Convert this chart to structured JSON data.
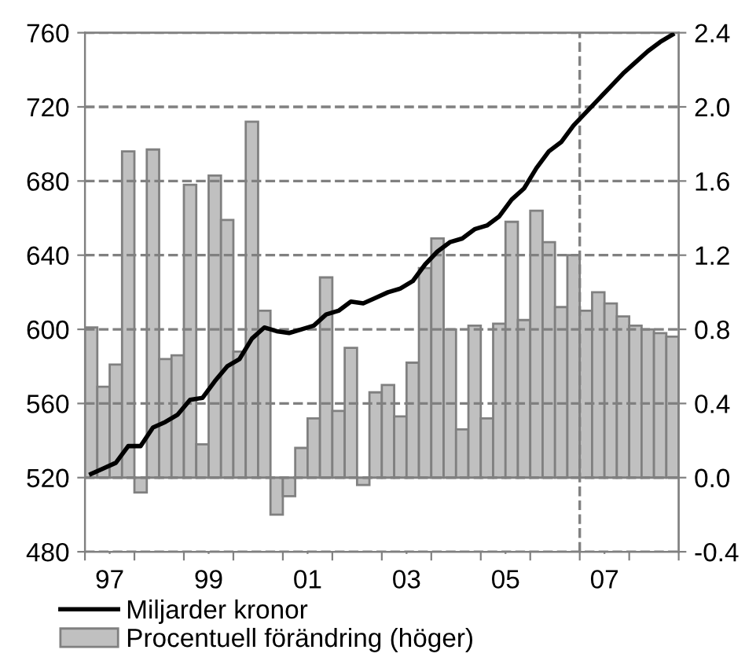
{
  "chart_data": {
    "type": "line",
    "x": [
      1996.625,
      1996.875,
      1997.125,
      1997.375,
      1997.625,
      1997.875,
      1998.125,
      1998.375,
      1998.625,
      1998.875,
      1999.125,
      1999.375,
      1999.625,
      1999.875,
      2000.125,
      2000.375,
      2000.625,
      2000.875,
      2001.125,
      2001.375,
      2001.625,
      2001.875,
      2002.125,
      2002.375,
      2002.625,
      2002.875,
      2003.125,
      2003.375,
      2003.625,
      2003.875,
      2004.125,
      2004.375,
      2004.625,
      2004.875,
      2005.125,
      2005.375,
      2005.625,
      2005.875,
      2006.125,
      2006.375,
      2006.625,
      2006.875,
      2007.125,
      2007.375,
      2007.625,
      2007.875,
      2008.125,
      2008.375
    ],
    "series": [
      {
        "name": "Procentuell förändring (höger)",
        "type": "bar",
        "axis": "y2",
        "color": "#c0c0c0",
        "values": [
          0.81,
          0.49,
          0.61,
          1.76,
          -0.08,
          1.77,
          0.64,
          0.66,
          1.58,
          0.18,
          1.63,
          1.39,
          0.68,
          1.92,
          0.9,
          -0.2,
          -0.1,
          0.16,
          0.32,
          1.08,
          0.36,
          0.7,
          -0.04,
          0.46,
          0.5,
          0.33,
          0.62,
          1.13,
          1.29,
          0.8,
          0.26,
          0.82,
          0.32,
          0.83,
          1.38,
          0.85,
          1.44,
          1.27,
          0.92,
          1.2,
          0.9,
          1.0,
          0.94,
          0.87,
          0.82,
          0.8,
          0.78,
          0.76
        ]
      },
      {
        "name": "Miljarder kronor",
        "color": "#000000",
        "values": [
          522,
          525,
          528,
          537,
          537,
          547,
          550,
          554,
          562,
          563,
          572,
          580,
          584,
          595,
          601,
          599,
          598,
          600,
          602,
          608,
          610,
          615,
          614,
          617,
          620,
          622,
          626,
          635,
          642,
          647,
          649,
          654,
          656,
          661,
          670,
          676,
          687,
          696,
          701,
          710,
          717,
          724,
          731,
          738,
          744,
          750,
          755,
          759
        ]
      }
    ],
    "xlim": [
      1996.5,
      2008.5
    ],
    "xticks": [
      {
        "value": 1997,
        "label": "97"
      },
      {
        "value": 1999,
        "label": "99"
      },
      {
        "value": 2001,
        "label": "01"
      },
      {
        "value": 2003,
        "label": "03"
      },
      {
        "value": 2005,
        "label": "05"
      },
      {
        "value": 2007,
        "label": "07"
      },
      {
        "value": 1996.5,
        "label": null
      },
      {
        "value": 1997.5,
        "label": null
      },
      {
        "value": 1998.5,
        "label": null
      },
      {
        "value": 1999.5,
        "label": null
      },
      {
        "value": 2000.5,
        "label": null
      },
      {
        "value": 2001.5,
        "label": null
      },
      {
        "value": 2002.5,
        "label": null
      },
      {
        "value": 2003.5,
        "label": null
      },
      {
        "value": 2004.5,
        "label": null
      },
      {
        "value": 2005.5,
        "label": null
      },
      {
        "value": 2006.5,
        "label": null
      },
      {
        "value": 2007.5,
        "label": null
      },
      {
        "value": 2008.5,
        "label": null
      }
    ],
    "ylim": [
      480,
      760
    ],
    "yticks": [
      480,
      520,
      560,
      600,
      640,
      680,
      720,
      760
    ],
    "y2lim": [
      -0.4,
      2.4
    ],
    "y2ticks": [
      -0.4,
      {
        "value": 0,
        "label": "0.0"
      },
      0.4,
      0.8,
      1.2,
      1.6,
      {
        "value": 2,
        "label": "2.0"
      },
      2.4
    ],
    "ref_lines": [
      {
        "axis": "x",
        "value": 2006.5,
        "color": "#808080",
        "line_style": "dashed"
      }
    ],
    "grid": "y",
    "legend": "bottom"
  }
}
